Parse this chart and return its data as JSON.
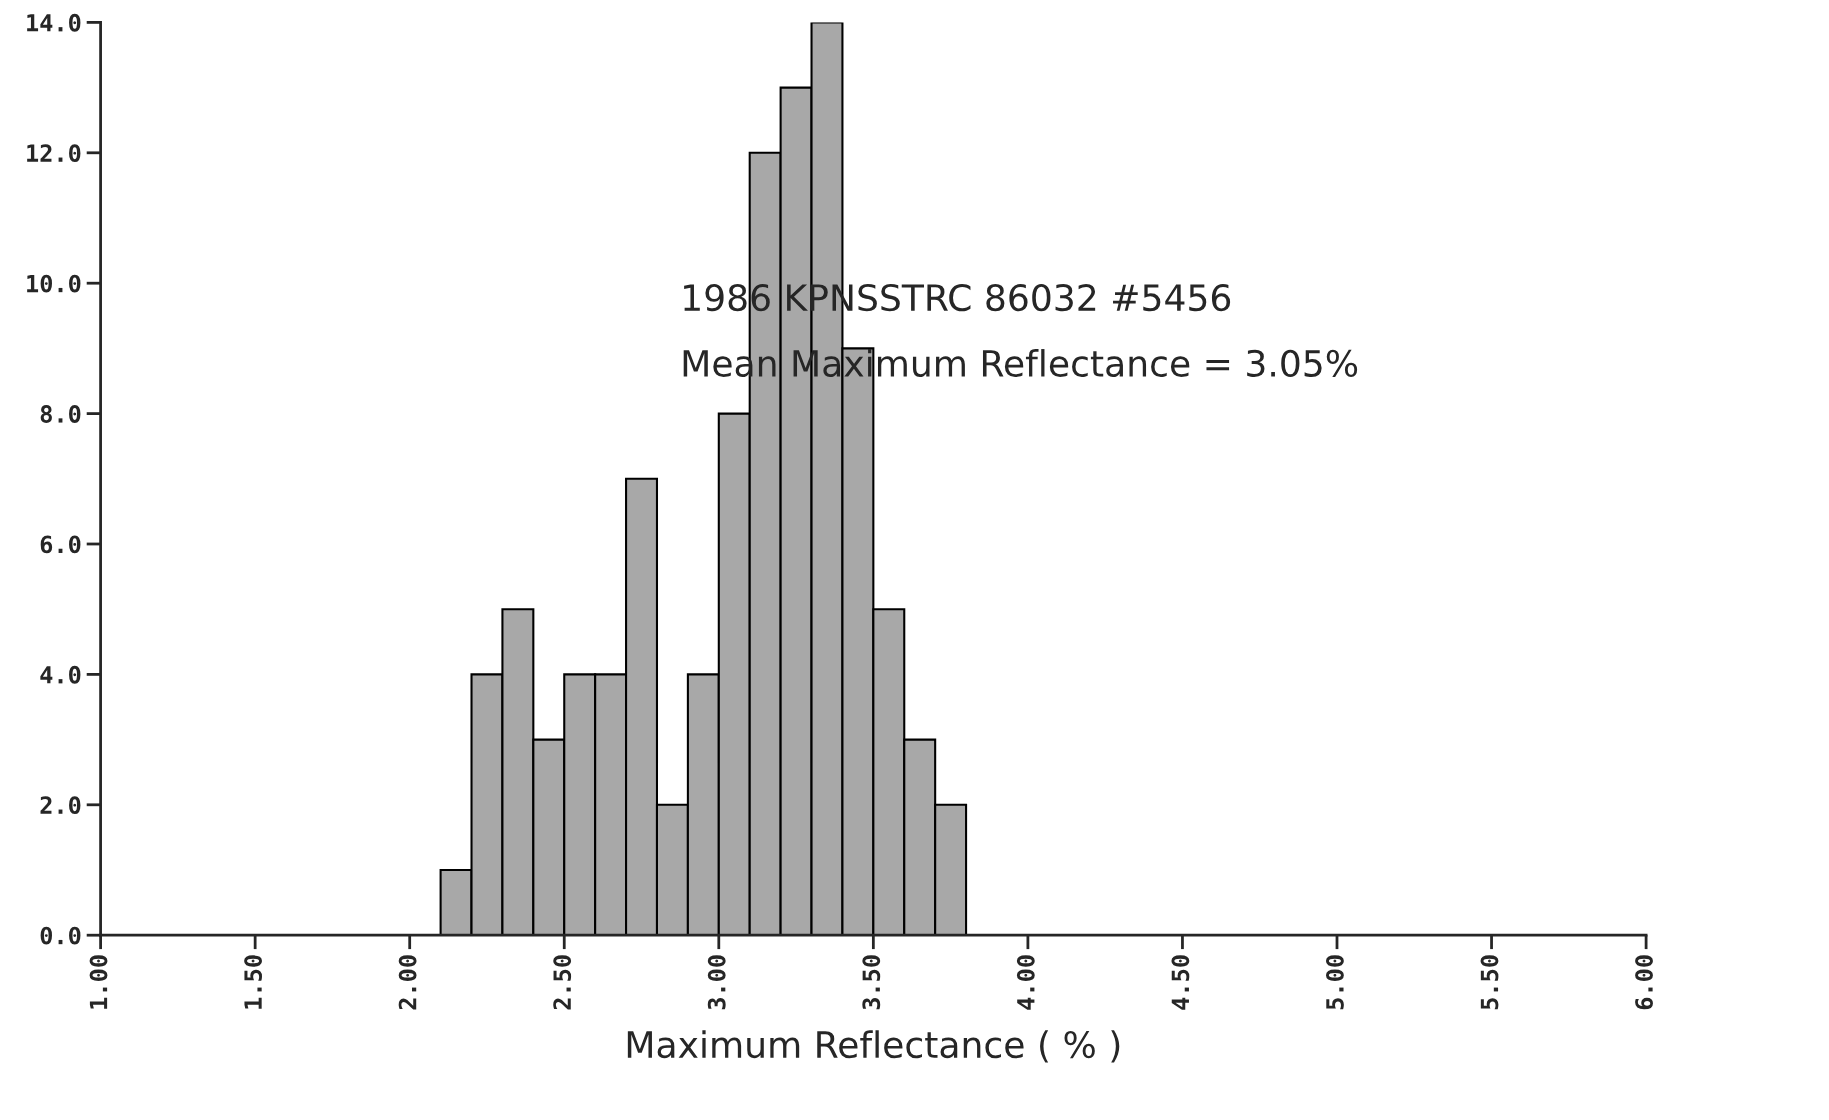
{
  "chart_data": {
    "type": "histogram",
    "xlabel": "Maximum Reflectance ( % )",
    "bins": [
      2.1,
      2.2,
      2.3,
      2.4,
      2.5,
      2.6,
      2.7,
      2.8,
      2.9,
      3.0,
      3.1,
      3.2,
      3.3,
      3.4,
      3.5,
      3.6,
      3.7,
      3.8
    ],
    "values": [
      1,
      4,
      5,
      3,
      4,
      4,
      7,
      2,
      4,
      8,
      12,
      13,
      14,
      9,
      5,
      3,
      2
    ],
    "color": "#a8a8a8",
    "xlim": [
      1.0,
      6.0
    ],
    "xticks": [
      {
        "value": 1.0,
        "label": "1.00"
      },
      {
        "value": 1.5,
        "label": "1.50"
      },
      {
        "value": 2.0,
        "label": "2.00"
      },
      {
        "value": 2.5,
        "label": "2.50"
      },
      {
        "value": 3.0,
        "label": "3.00"
      },
      {
        "value": 3.5,
        "label": "3.50"
      },
      {
        "value": 4.0,
        "label": "4.00"
      },
      {
        "value": 4.5,
        "label": "4.50"
      },
      {
        "value": 5.0,
        "label": "5.00"
      },
      {
        "value": 5.5,
        "label": "5.50"
      },
      {
        "value": 6.0,
        "label": "6.00"
      }
    ],
    "ylim": [
      0,
      14
    ],
    "yticks": [
      {
        "value": 0,
        "label": "0.0"
      },
      {
        "value": 2,
        "label": "2.0"
      },
      {
        "value": 4,
        "label": "4.0"
      },
      {
        "value": 6,
        "label": "6.0"
      },
      {
        "value": 8,
        "label": "8.0"
      },
      {
        "value": 10,
        "label": "10.0"
      },
      {
        "value": 12,
        "label": "12.0"
      },
      {
        "value": 14,
        "label": "14.0"
      }
    ],
    "grid": false,
    "annotations": [
      "1986 KPNSSTRC 86032 #5456",
      "Mean Maximum Reflectance = 3.05%"
    ]
  }
}
